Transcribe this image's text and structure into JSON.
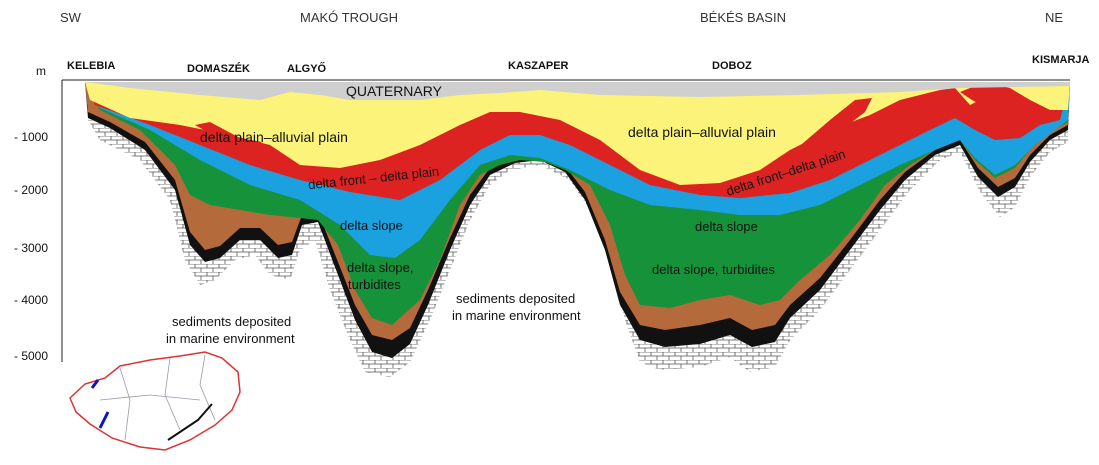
{
  "header": {
    "left": "SW",
    "trough": "MAKÓ TROUGH",
    "basin": "BÉKÉS BASIN",
    "right": "NE"
  },
  "localities": [
    "KELEBIA",
    "DOMASZÉK",
    "ALGYŐ",
    "KASZAPER",
    "DOBOZ",
    "KISMARJA"
  ],
  "depth_axis": {
    "unit": "m",
    "labels": [
      "- 1000",
      "- 2000",
      "- 3000",
      "- 4000",
      "- 5000"
    ]
  },
  "units": {
    "quaternary": "QUATERNARY",
    "plain_west": "delta plain–alluvial plain",
    "plain_east": "delta plain–alluvial plain",
    "front_west": "delta front  –  delta plain",
    "front_east": "delta front–delta plain",
    "slope_west": "delta slope",
    "slope_east": "delta slope",
    "turbidites_west": [
      "delta slope,",
      "turbidites"
    ],
    "turbidites_east": "delta slope, turbidites",
    "marine_center": [
      "sediments deposited",
      "in marine environment"
    ],
    "marine_west": [
      "sediments deposited",
      "in marine environment"
    ]
  }
}
